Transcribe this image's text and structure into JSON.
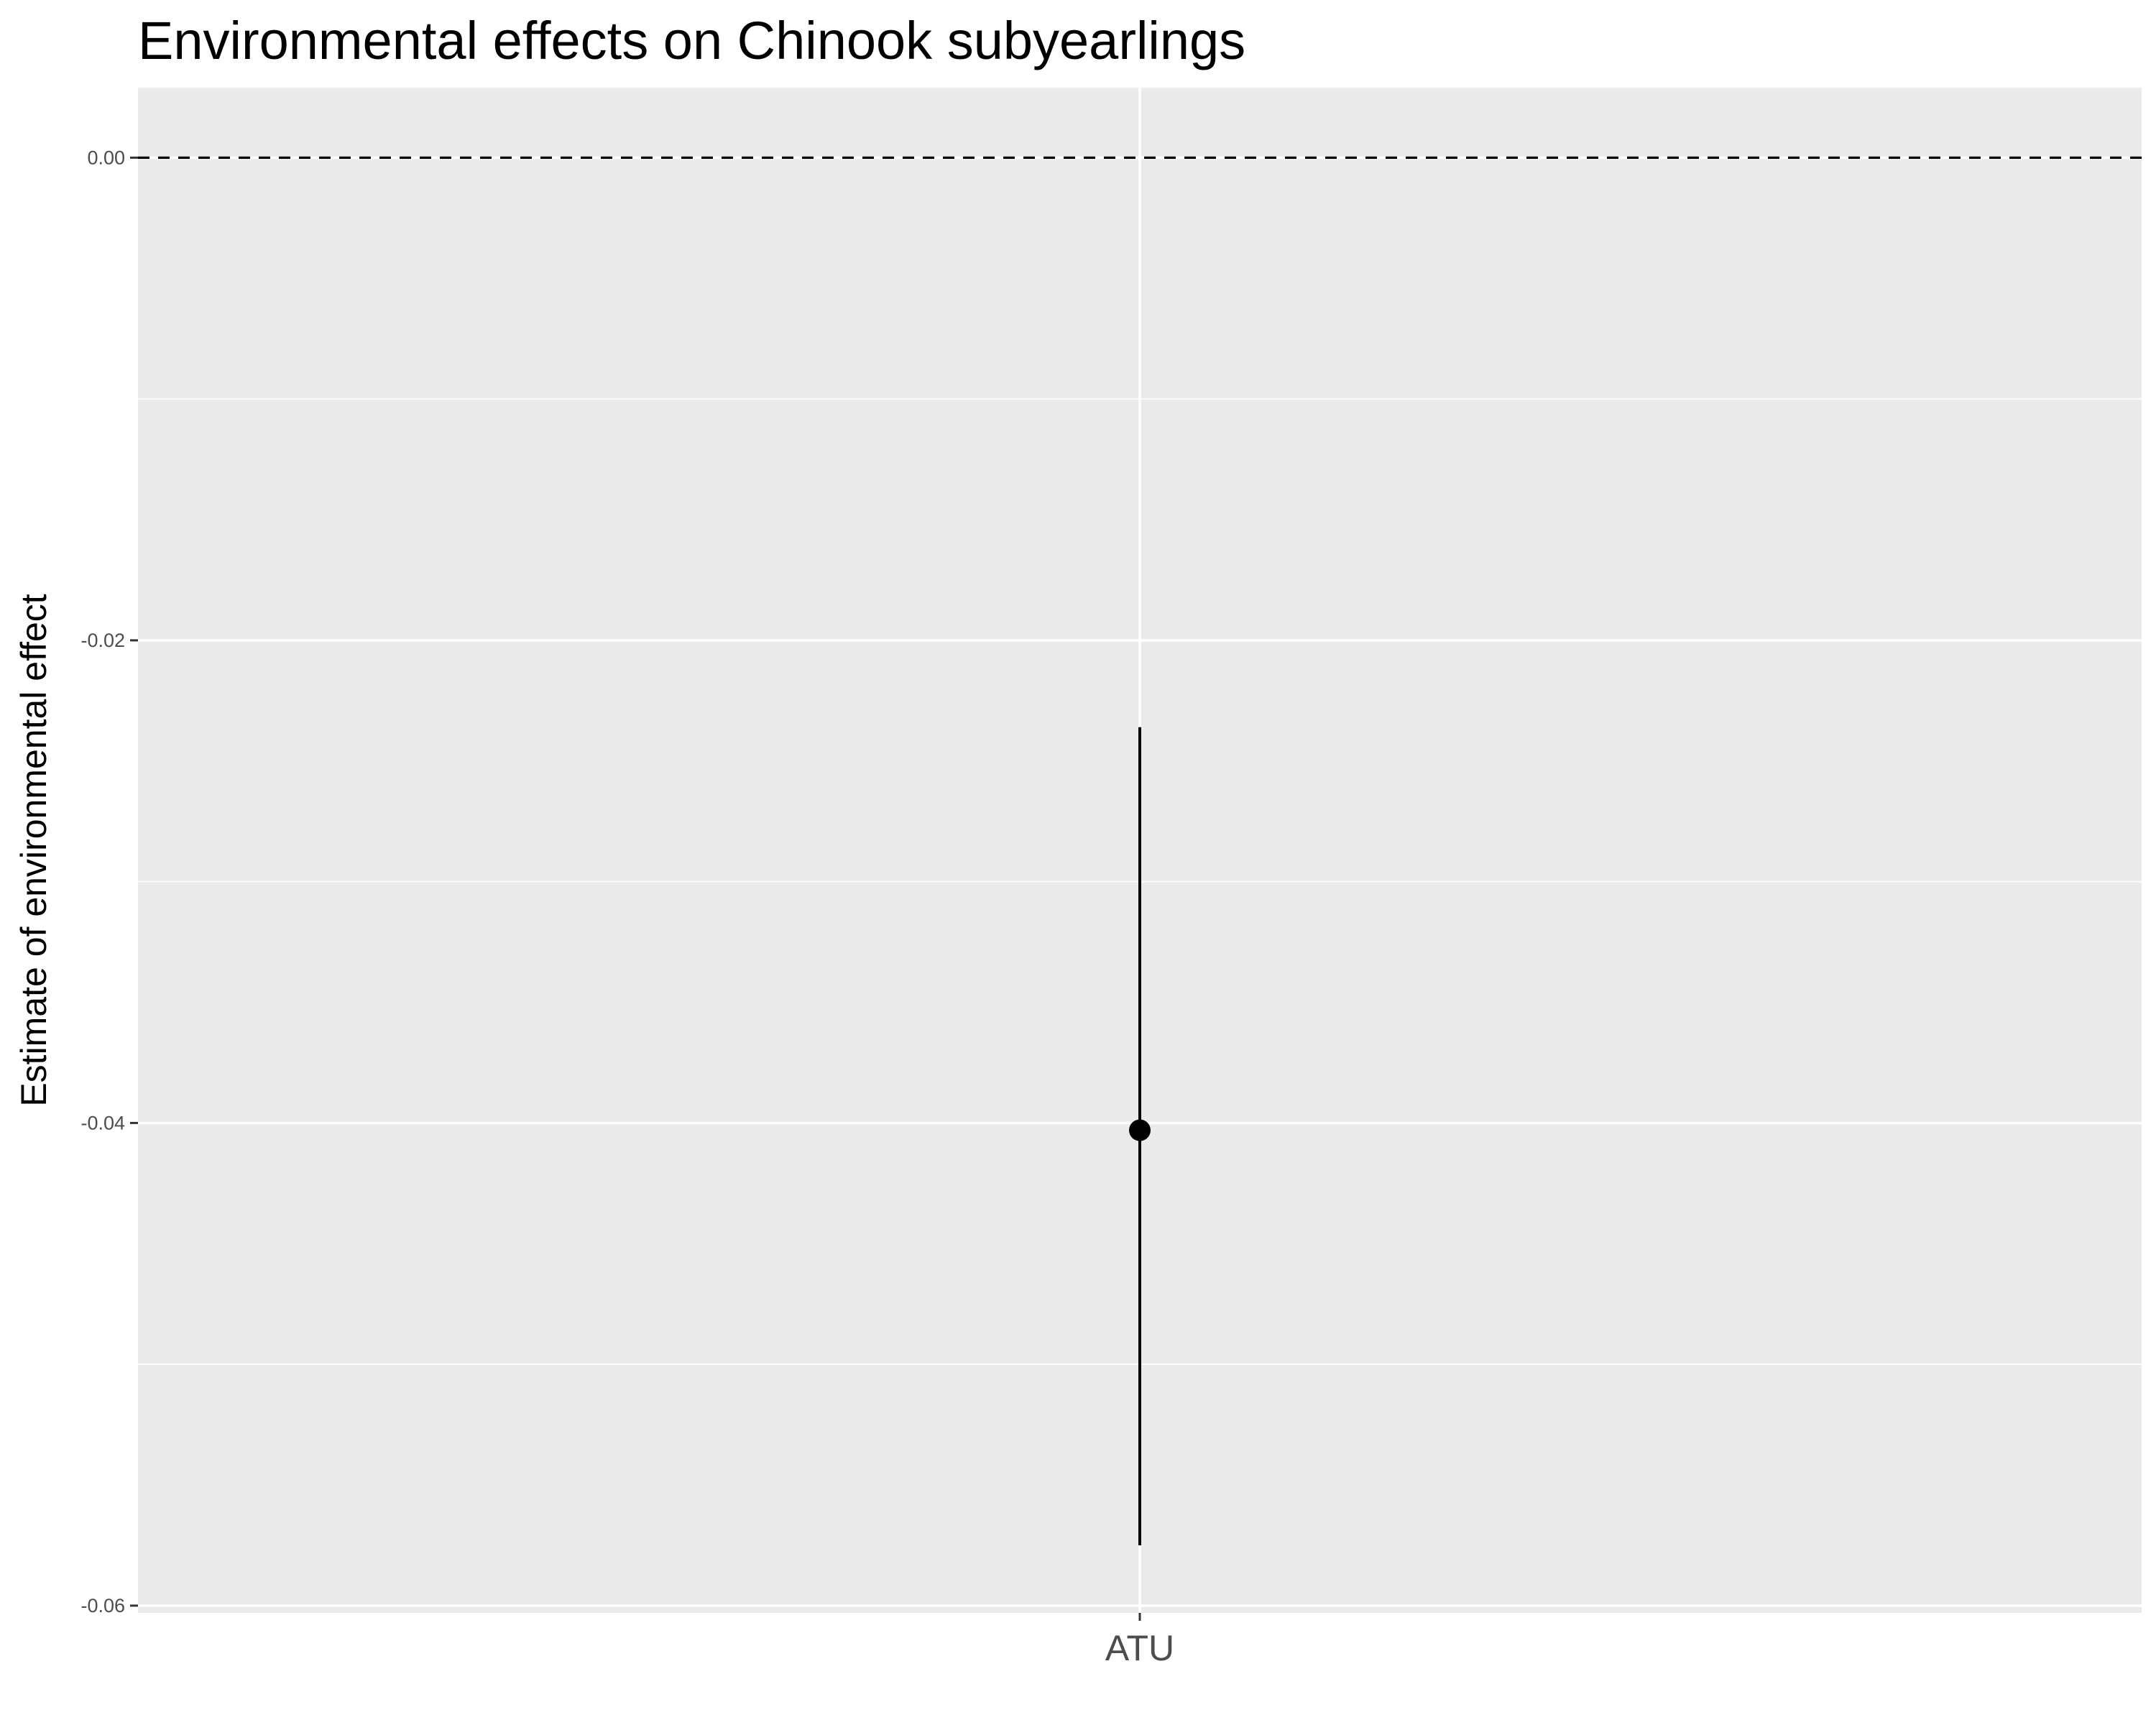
{
  "chart_data": {
    "type": "pointrange",
    "title": "Environmental effects on Chinook subyearlings",
    "xlabel": "",
    "ylabel": "Estimate of environmental effect",
    "categories": [
      "ATU"
    ],
    "points": [
      {
        "category": "ATU",
        "estimate": -0.0403,
        "lower": -0.0575,
        "upper": -0.0236
      }
    ],
    "reference_line": {
      "y": 0.0,
      "style": "dashed"
    },
    "ylim": [
      -0.0603,
      0.0029
    ],
    "yticks": [
      {
        "value": 0.0,
        "label": "0.00"
      },
      {
        "value": -0.02,
        "label": "-0.02"
      },
      {
        "value": -0.04,
        "label": "-0.04"
      },
      {
        "value": -0.06,
        "label": "-0.06"
      }
    ],
    "y_minor_ticks": [
      -0.01,
      -0.03,
      -0.05
    ],
    "grid": true,
    "colors": {
      "panel": "#ebebeb",
      "grid": "#ffffff",
      "mark": "#000000",
      "tick_text": "#4d4d4d"
    }
  }
}
